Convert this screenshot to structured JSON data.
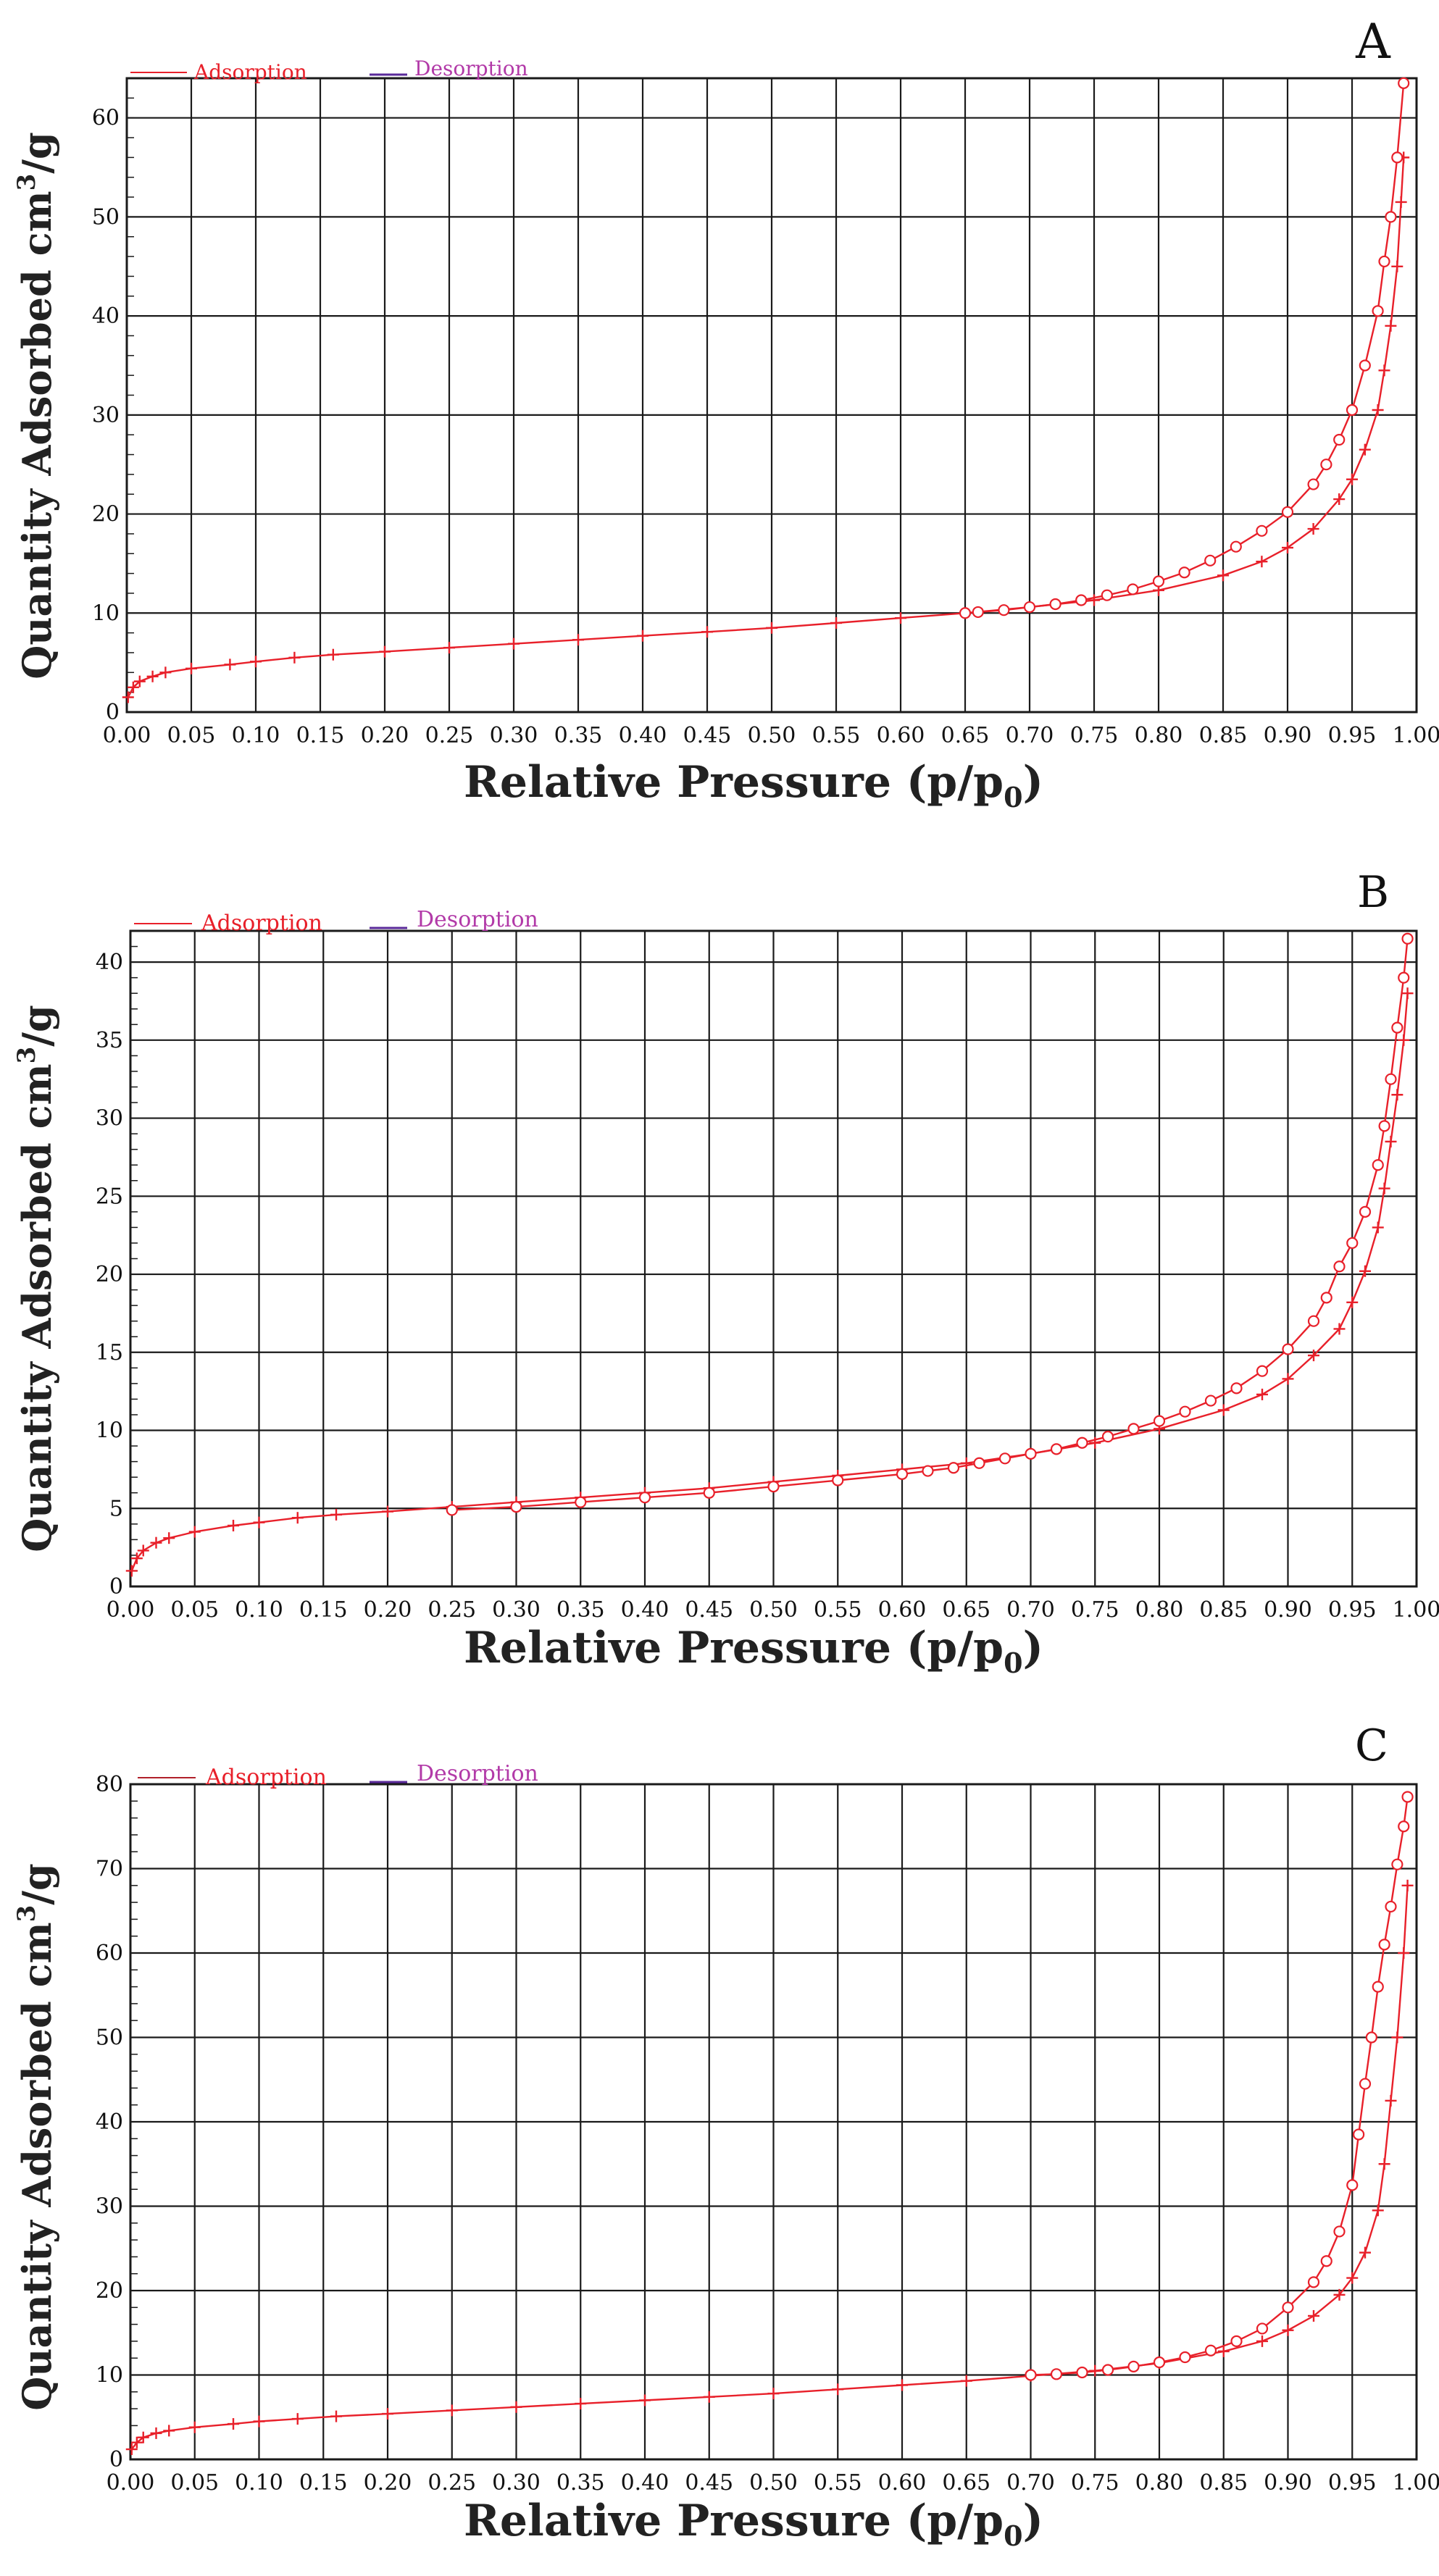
{
  "colors": {
    "adsorption": "#e8202a",
    "desorption": "#b23aa8",
    "grid": "#1a1a1a",
    "text": "#111111"
  },
  "chart_data": [
    {
      "type": "line",
      "panel_label": "A",
      "title": "",
      "xlabel": "Relative Pressure (p/p",
      "xlabel_sub": "0",
      "xlabel_end": ")",
      "ylabel": "Quantity Adsorbed cm",
      "ylabel_sup": "3",
      "ylabel_end": "/g",
      "xlim": [
        0,
        1
      ],
      "ylim": [
        0,
        64
      ],
      "xticks": [
        "0.00",
        "0.05",
        "0.10",
        "0.15",
        "0.20",
        "0.25",
        "0.30",
        "0.35",
        "0.40",
        "0.45",
        "0.50",
        "0.55",
        "0.60",
        "0.65",
        "0.70",
        "0.75",
        "0.80",
        "0.85",
        "0.90",
        "0.95",
        "1.00"
      ],
      "yticks": [
        0,
        10,
        20,
        30,
        40,
        50,
        60
      ],
      "legend": {
        "adsorption": "Adsorption",
        "desorption": "Desorption"
      },
      "series": [
        {
          "name": "Adsorption",
          "marker": "plus",
          "x": [
            0.001,
            0.005,
            0.01,
            0.02,
            0.03,
            0.05,
            0.08,
            0.1,
            0.13,
            0.16,
            0.2,
            0.25,
            0.3,
            0.35,
            0.4,
            0.45,
            0.5,
            0.55,
            0.6,
            0.65,
            0.7,
            0.75,
            0.8,
            0.85,
            0.88,
            0.9,
            0.92,
            0.94,
            0.95,
            0.96,
            0.97,
            0.975,
            0.98,
            0.985,
            0.988,
            0.99
          ],
          "y": [
            1.5,
            2.5,
            3.1,
            3.6,
            4.0,
            4.4,
            4.8,
            5.1,
            5.5,
            5.8,
            6.1,
            6.5,
            6.9,
            7.3,
            7.7,
            8.1,
            8.5,
            9.0,
            9.5,
            10.0,
            10.6,
            11.3,
            12.3,
            13.8,
            15.2,
            16.6,
            18.5,
            21.5,
            23.5,
            26.5,
            30.5,
            34.5,
            39.0,
            45.0,
            51.5,
            56.0
          ]
        },
        {
          "name": "Desorption",
          "marker": "circle",
          "x": [
            0.99,
            0.985,
            0.98,
            0.975,
            0.97,
            0.96,
            0.95,
            0.94,
            0.93,
            0.92,
            0.9,
            0.88,
            0.86,
            0.84,
            0.82,
            0.8,
            0.78,
            0.76,
            0.74,
            0.72,
            0.7,
            0.68,
            0.66,
            0.65
          ],
          "y": [
            63.5,
            56.0,
            50.0,
            45.5,
            40.5,
            35.0,
            30.5,
            27.5,
            25.0,
            23.0,
            20.2,
            18.3,
            16.7,
            15.3,
            14.1,
            13.2,
            12.4,
            11.8,
            11.3,
            10.9,
            10.6,
            10.3,
            10.1,
            10.0
          ]
        }
      ]
    },
    {
      "type": "line",
      "panel_label": "B",
      "title": "",
      "xlabel": "Relative Pressure (p/p",
      "xlabel_sub": "0",
      "xlabel_end": ")",
      "ylabel": "Quantity Adsorbed cm",
      "ylabel_sup": "3",
      "ylabel_end": "/g",
      "xlim": [
        0,
        1
      ],
      "ylim": [
        0,
        42
      ],
      "xticks": [
        "0.00",
        "0.05",
        "0.10",
        "0.15",
        "0.20",
        "0.25",
        "0.30",
        "0.35",
        "0.40",
        "0.45",
        "0.50",
        "0.55",
        "0.60",
        "0.65",
        "0.70",
        "0.75",
        "0.80",
        "0.85",
        "0.90",
        "0.95",
        "1.00"
      ],
      "yticks": [
        0,
        5,
        10,
        15,
        20,
        25,
        30,
        35,
        40
      ],
      "legend": {
        "adsorption": "Adsorption",
        "desorption": "Desorption"
      },
      "series": [
        {
          "name": "Adsorption",
          "marker": "plus",
          "x": [
            0.001,
            0.005,
            0.01,
            0.02,
            0.03,
            0.05,
            0.08,
            0.1,
            0.13,
            0.16,
            0.2,
            0.25,
            0.3,
            0.35,
            0.4,
            0.45,
            0.5,
            0.55,
            0.6,
            0.65,
            0.7,
            0.75,
            0.8,
            0.85,
            0.88,
            0.9,
            0.92,
            0.94,
            0.95,
            0.96,
            0.97,
            0.975,
            0.98,
            0.985,
            0.99,
            0.993
          ],
          "y": [
            1.0,
            1.8,
            2.3,
            2.8,
            3.1,
            3.5,
            3.9,
            4.1,
            4.4,
            4.6,
            4.8,
            5.1,
            5.4,
            5.7,
            6.0,
            6.3,
            6.7,
            7.1,
            7.5,
            7.9,
            8.5,
            9.2,
            10.1,
            11.3,
            12.3,
            13.3,
            14.8,
            16.5,
            18.2,
            20.2,
            23.0,
            25.5,
            28.5,
            31.5,
            35.0,
            38.0
          ]
        },
        {
          "name": "Desorption",
          "marker": "circle",
          "x": [
            0.993,
            0.99,
            0.985,
            0.98,
            0.975,
            0.97,
            0.96,
            0.95,
            0.94,
            0.93,
            0.92,
            0.9,
            0.88,
            0.86,
            0.84,
            0.82,
            0.8,
            0.78,
            0.76,
            0.74,
            0.72,
            0.7,
            0.68,
            0.66,
            0.64,
            0.62,
            0.6,
            0.55,
            0.5,
            0.45,
            0.4,
            0.35,
            0.3,
            0.25
          ],
          "y": [
            41.5,
            39.0,
            35.8,
            32.5,
            29.5,
            27.0,
            24.0,
            22.0,
            20.5,
            18.5,
            17.0,
            15.2,
            13.8,
            12.7,
            11.9,
            11.2,
            10.6,
            10.1,
            9.6,
            9.2,
            8.8,
            8.5,
            8.2,
            7.9,
            7.6,
            7.4,
            7.2,
            6.8,
            6.4,
            6.0,
            5.7,
            5.4,
            5.1,
            4.9
          ]
        }
      ]
    },
    {
      "type": "line",
      "panel_label": "C",
      "title": "",
      "xlabel": "Relative Pressure (p/p",
      "xlabel_sub": "0",
      "xlabel_end": ")",
      "ylabel": "Quantity Adsorbed cm",
      "ylabel_sup": "3",
      "ylabel_end": "/g",
      "xlim": [
        0,
        1
      ],
      "ylim": [
        0,
        80
      ],
      "xticks": [
        "0.00",
        "0.05",
        "0.10",
        "0.15",
        "0.20",
        "0.25",
        "0.30",
        "0.35",
        "0.40",
        "0.45",
        "0.50",
        "0.55",
        "0.60",
        "0.65",
        "0.70",
        "0.75",
        "0.80",
        "0.85",
        "0.90",
        "0.95",
        "1.00"
      ],
      "yticks": [
        0,
        10,
        20,
        30,
        40,
        50,
        60,
        70,
        80
      ],
      "legend": {
        "adsorption": "Adsorption",
        "desorption": "Desorption"
      },
      "series": [
        {
          "name": "Adsorption",
          "marker": "plus",
          "x": [
            0.001,
            0.005,
            0.01,
            0.02,
            0.03,
            0.05,
            0.08,
            0.1,
            0.13,
            0.16,
            0.2,
            0.25,
            0.3,
            0.35,
            0.4,
            0.45,
            0.5,
            0.55,
            0.6,
            0.65,
            0.7,
            0.75,
            0.8,
            0.85,
            0.88,
            0.9,
            0.92,
            0.94,
            0.95,
            0.96,
            0.97,
            0.975,
            0.98,
            0.985,
            0.99,
            0.993
          ],
          "y": [
            1.2,
            2.0,
            2.6,
            3.1,
            3.4,
            3.8,
            4.2,
            4.5,
            4.8,
            5.1,
            5.4,
            5.8,
            6.2,
            6.6,
            7.0,
            7.4,
            7.8,
            8.3,
            8.8,
            9.3,
            9.9,
            10.5,
            11.4,
            12.8,
            14.0,
            15.3,
            17.0,
            19.5,
            21.5,
            24.5,
            29.5,
            35.0,
            42.5,
            50.0,
            60.0,
            68.0
          ]
        },
        {
          "name": "Desorption",
          "marker": "circle",
          "x": [
            0.993,
            0.99,
            0.985,
            0.98,
            0.975,
            0.97,
            0.965,
            0.96,
            0.955,
            0.95,
            0.94,
            0.93,
            0.92,
            0.9,
            0.88,
            0.86,
            0.84,
            0.82,
            0.8,
            0.78,
            0.76,
            0.74,
            0.72,
            0.7
          ],
          "y": [
            78.5,
            75.0,
            70.5,
            65.5,
            61.0,
            56.0,
            50.0,
            44.5,
            38.5,
            32.5,
            27.0,
            23.5,
            21.0,
            18.0,
            15.5,
            14.0,
            12.9,
            12.1,
            11.5,
            11.0,
            10.6,
            10.3,
            10.1,
            10.0
          ]
        }
      ]
    }
  ]
}
